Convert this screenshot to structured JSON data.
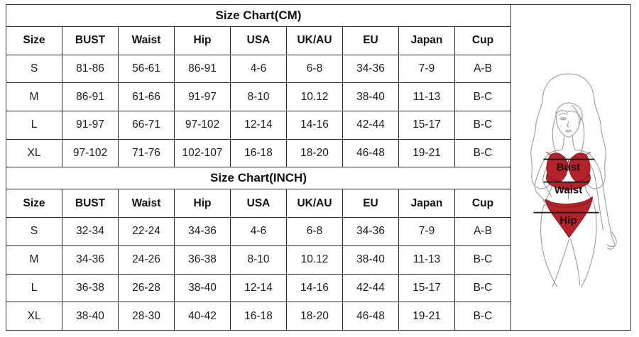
{
  "chart_data": [
    {
      "type": "table",
      "title": "Size Chart(CM)",
      "columns": [
        "Size",
        "BUST",
        "Waist",
        "Hip",
        "USA",
        "UK/AU",
        "EU",
        "Japan",
        "Cup"
      ],
      "rows": [
        [
          "S",
          "81-86",
          "56-61",
          "86-91",
          "4-6",
          "6-8",
          "34-36",
          "7-9",
          "A-B"
        ],
        [
          "M",
          "86-91",
          "61-66",
          "91-97",
          "8-10",
          "10.12",
          "38-40",
          "11-13",
          "B-C"
        ],
        [
          "L",
          "91-97",
          "66-71",
          "97-102",
          "12-14",
          "14-16",
          "42-44",
          "15-17",
          "B-C"
        ],
        [
          "XL",
          "97-102",
          "71-76",
          "102-107",
          "16-18",
          "18-20",
          "46-48",
          "19-21",
          "B-C"
        ]
      ]
    },
    {
      "type": "table",
      "title": "Size Chart(INCH)",
      "columns": [
        "Size",
        "BUST",
        "Waist",
        "Hip",
        "USA",
        "UK/AU",
        "EU",
        "Japan",
        "Cup"
      ],
      "rows": [
        [
          "S",
          "32-34",
          "22-24",
          "34-36",
          "4-6",
          "6-8",
          "34-36",
          "7-9",
          "A-B"
        ],
        [
          "M",
          "34-36",
          "24-26",
          "36-38",
          "8-10",
          "10.12",
          "38-40",
          "11-13",
          "B-C"
        ],
        [
          "L",
          "36-38",
          "26-28",
          "38-40",
          "12-14",
          "14-16",
          "42-44",
          "15-17",
          "B-C"
        ],
        [
          "XL",
          "38-40",
          "28-30",
          "40-42",
          "16-18",
          "18-20",
          "46-48",
          "19-21",
          "B-C"
        ]
      ]
    }
  ],
  "figure": {
    "bust_label": "Bust",
    "waist_label": "Waist",
    "hip_label": "Hip",
    "colors": {
      "bikini_red": "#b4222b",
      "bikini_edge": "#8c1820",
      "line_art": "#9c9c9c",
      "measure_line": "#151515"
    }
  }
}
